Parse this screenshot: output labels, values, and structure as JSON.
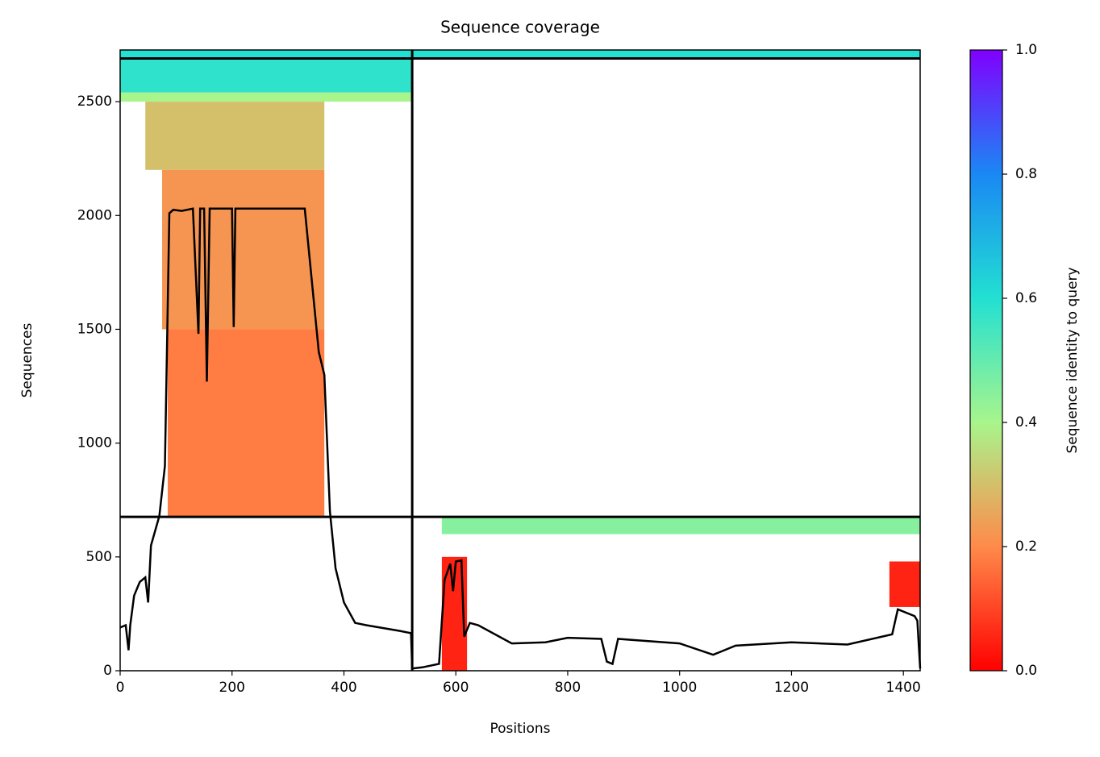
{
  "chart_data": {
    "type": "coverage",
    "title": "Sequence coverage",
    "x_label": "Positions",
    "y_label": "Sequences",
    "colorbar_label": "Sequence identity to query",
    "xlim": [
      0,
      1430
    ],
    "ylim": [
      0,
      2727
    ],
    "xticks": [
      0,
      200,
      400,
      600,
      800,
      1000,
      1200,
      1400
    ],
    "yticks": [
      0,
      500,
      1000,
      1500,
      2000,
      2500
    ],
    "clim": [
      0,
      1
    ],
    "cticks": [
      {
        "value": 0,
        "label": "0.0"
      },
      0.2,
      0.4,
      0.6,
      0.8,
      {
        "value": 1,
        "label": "1.0"
      }
    ],
    "colormap": [
      {
        "value": 0,
        "color": "#ff0000"
      },
      {
        "value": 0.2,
        "color": "#ff8a4a"
      },
      {
        "value": 0.4,
        "color": "#a8f58c"
      },
      {
        "value": 0.6,
        "color": "#22e0d2"
      },
      {
        "value": 0.8,
        "color": "#1a88f4"
      },
      {
        "value": 1,
        "color": "#8000ff"
      }
    ],
    "x_separators": [
      522
    ],
    "y_separators": [
      676,
      2690
    ],
    "blocks": [
      {
        "x": [
          0,
          522
        ],
        "y": [
          2690,
          2727
        ],
        "identity": 0.6
      },
      {
        "x": [
          522,
          1430
        ],
        "y": [
          2690,
          2727
        ],
        "identity": 0.6
      },
      {
        "x": [
          0,
          522
        ],
        "y": [
          2540,
          2690
        ],
        "identity": 0.58
      },
      {
        "x": [
          0,
          520
        ],
        "y": [
          2500,
          2540
        ],
        "identity": 0.4
      },
      {
        "x": [
          45,
          365
        ],
        "y": [
          2200,
          2500
        ],
        "identity": 0.3
      },
      {
        "x": [
          75,
          365
        ],
        "y": [
          1500,
          2200
        ],
        "identity": 0.22
      },
      {
        "x": [
          85,
          365
        ],
        "y": [
          676,
          1500
        ],
        "identity": 0.18
      },
      {
        "x": [
          575,
          1430
        ],
        "y": [
          600,
          676
        ],
        "identity": 0.45
      },
      {
        "x": [
          575,
          620
        ],
        "y": [
          0,
          500
        ],
        "identity": 0.05
      },
      {
        "x": [
          1375,
          1430
        ],
        "y": [
          280,
          480
        ],
        "identity": 0.05
      }
    ],
    "coverage": {
      "color": "#000000",
      "x": [
        0,
        10,
        15,
        18,
        25,
        35,
        45,
        50,
        55,
        70,
        80,
        88,
        95,
        110,
        130,
        140,
        143,
        150,
        155,
        160,
        200,
        203,
        206,
        240,
        300,
        330,
        355,
        365,
        375,
        385,
        400,
        420,
        440,
        500,
        520,
        522,
        540,
        570,
        580,
        590,
        595,
        600,
        610,
        615,
        625,
        640,
        700,
        760,
        800,
        860,
        870,
        880,
        890,
        1000,
        1060,
        1100,
        1200,
        1300,
        1380,
        1390,
        1420,
        1425,
        1430
      ],
      "values": [
        190,
        200,
        90,
        200,
        330,
        390,
        410,
        300,
        550,
        680,
        900,
        2010,
        2025,
        2020,
        2030,
        1480,
        2030,
        2030,
        1270,
        2030,
        2030,
        1510,
        2030,
        2030,
        2030,
        2030,
        1400,
        1300,
        700,
        450,
        300,
        210,
        200,
        175,
        165,
        10,
        15,
        30,
        400,
        470,
        350,
        480,
        485,
        150,
        210,
        200,
        120,
        125,
        145,
        140,
        40,
        30,
        140,
        120,
        70,
        110,
        125,
        115,
        160,
        270,
        240,
        220,
        10
      ]
    }
  }
}
